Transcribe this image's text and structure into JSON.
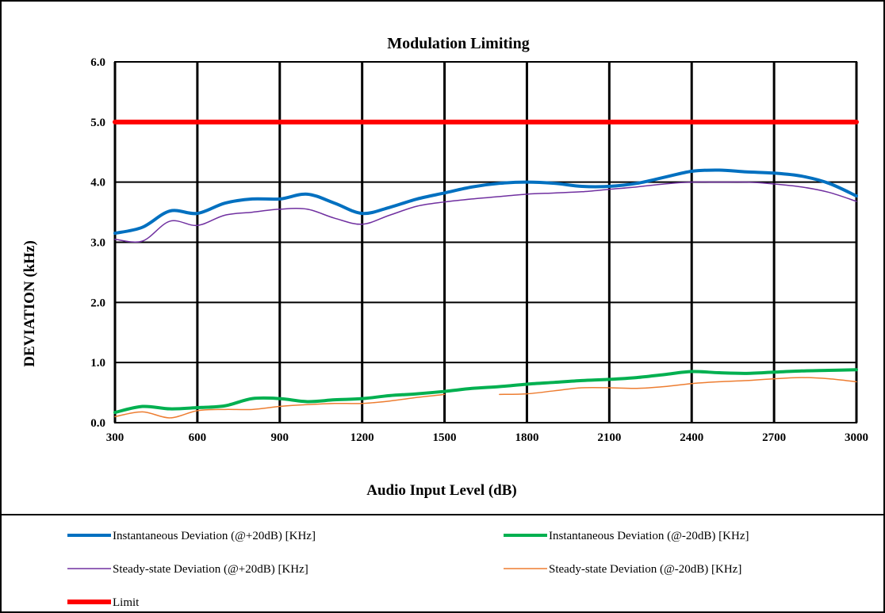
{
  "chart_data": {
    "type": "line",
    "title": "Modulation Limiting",
    "xlabel": "Audio Input Level (dB)",
    "ylabel": "DEVIATION (kHz)",
    "xlim": [
      300,
      3000
    ],
    "ylim": [
      0,
      6
    ],
    "x_ticks": [
      "300",
      "600",
      "900",
      "1200",
      "1500",
      "1800",
      "2100",
      "2400",
      "2700",
      "3000"
    ],
    "y_ticks": [
      "0.0",
      "1.0",
      "2.0",
      "3.0",
      "4.0",
      "5.0",
      "6.0"
    ],
    "grid": true,
    "legend_position": "bottom",
    "series": [
      {
        "name": "Instantaneous Deviation (@+20dB) [KHz]",
        "color": "#0070c0",
        "x": [
          300,
          400,
          500,
          600,
          700,
          800,
          900,
          1000,
          1100,
          1200,
          1300,
          1400,
          1500,
          1600,
          1700,
          1800,
          1900,
          2000,
          2100,
          2200,
          2300,
          2400,
          2500,
          2600,
          2700,
          2800,
          2900,
          3000
        ],
        "y": [
          3.15,
          3.25,
          3.52,
          3.48,
          3.65,
          3.72,
          3.72,
          3.8,
          3.65,
          3.48,
          3.58,
          3.72,
          3.82,
          3.92,
          3.98,
          4.0,
          3.98,
          3.93,
          3.93,
          3.98,
          4.08,
          4.18,
          4.2,
          4.17,
          4.15,
          4.1,
          3.98,
          3.77
        ]
      },
      {
        "name": "Instantaneous Deviation (@-20dB) [KHz]",
        "color": "#00b050",
        "x": [
          300,
          400,
          500,
          600,
          700,
          800,
          900,
          1000,
          1100,
          1200,
          1300,
          1400,
          1500,
          1600,
          1700,
          1800,
          1900,
          2000,
          2100,
          2200,
          2300,
          2400,
          2500,
          2600,
          2700,
          2800,
          2900,
          3000
        ],
        "y": [
          0.17,
          0.27,
          0.23,
          0.25,
          0.28,
          0.4,
          0.4,
          0.35,
          0.38,
          0.4,
          0.45,
          0.48,
          0.52,
          0.57,
          0.6,
          0.64,
          0.67,
          0.7,
          0.72,
          0.75,
          0.8,
          0.85,
          0.83,
          0.82,
          0.84,
          0.86,
          0.87,
          0.88
        ]
      },
      {
        "name": "Steady-state Deviation (@+20dB) [KHz]",
        "color": "#7030a0",
        "x": [
          300,
          400,
          500,
          600,
          700,
          800,
          900,
          1000,
          1100,
          1200,
          1300,
          1400,
          1500,
          1600,
          1700,
          1800,
          1900,
          2000,
          2100,
          2200,
          2300,
          2400,
          2500,
          2600,
          2700,
          2800,
          2900,
          3000
        ],
        "y": [
          3.05,
          3.02,
          3.35,
          3.28,
          3.45,
          3.5,
          3.55,
          3.55,
          3.4,
          3.3,
          3.45,
          3.6,
          3.67,
          3.72,
          3.76,
          3.8,
          3.82,
          3.84,
          3.88,
          3.92,
          3.97,
          4.0,
          4.0,
          4.0,
          3.97,
          3.92,
          3.83,
          3.68
        ]
      },
      {
        "name": "Steady-state Deviation (@-20dB) [KHz]",
        "color": "#ed7d31",
        "x": [
          300,
          400,
          500,
          600,
          700,
          800,
          900,
          1000,
          1100,
          1200,
          1300,
          1400,
          1500,
          1600,
          1700,
          1800,
          1900,
          2000,
          2100,
          2200,
          2300,
          2400,
          2500,
          2600,
          2700,
          2800,
          2900,
          3000
        ],
        "y": [
          0.1,
          0.18,
          0.08,
          0.2,
          0.22,
          0.22,
          0.27,
          0.3,
          0.32,
          0.32,
          0.36,
          0.42,
          0.47,
          null,
          0.47,
          0.48,
          0.53,
          0.58,
          0.58,
          0.57,
          0.6,
          0.65,
          0.68,
          0.7,
          0.73,
          0.75,
          0.73,
          0.68
        ]
      },
      {
        "name": "Limit",
        "color": "#ff0000",
        "x": [
          300,
          3000
        ],
        "y": [
          5.0,
          5.0
        ]
      }
    ]
  }
}
